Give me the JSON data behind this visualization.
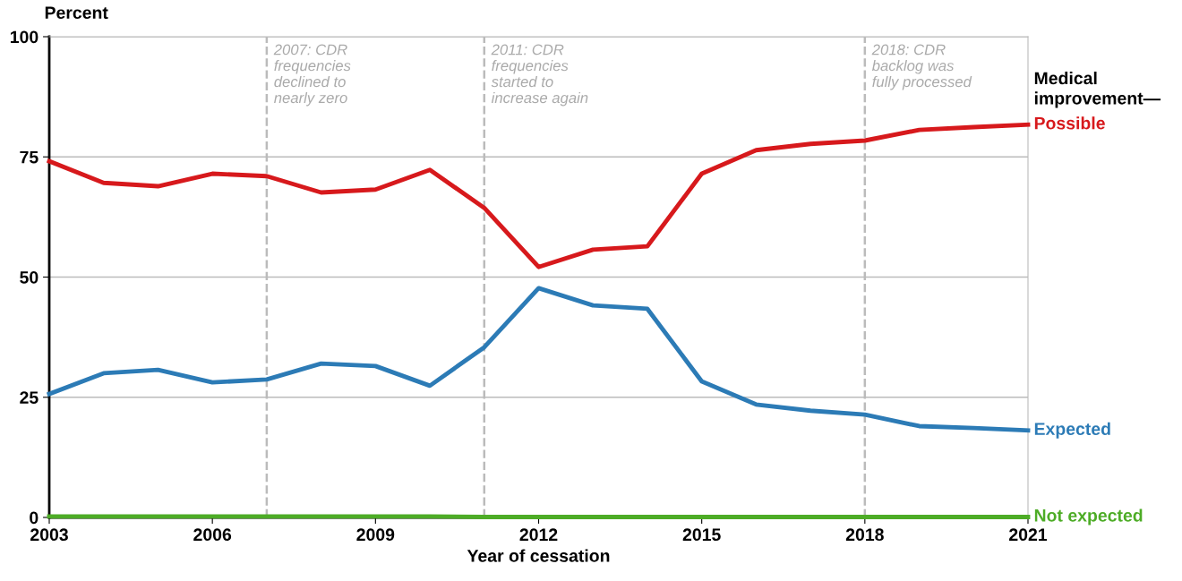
{
  "chart_data": {
    "type": "line",
    "ylabel": "Percent",
    "xlabel": "Year of cessation",
    "legend_title": "Medical\nimprovement—",
    "x": [
      2003,
      2004,
      2005,
      2006,
      2007,
      2008,
      2009,
      2010,
      2011,
      2012,
      2013,
      2014,
      2015,
      2016,
      2017,
      2018,
      2019,
      2020,
      2021
    ],
    "series": [
      {
        "name": "Possible",
        "color": "#d7191c",
        "values": [
          74.1,
          69.6,
          68.9,
          71.5,
          71.0,
          67.6,
          68.2,
          72.3,
          64.4,
          52.1,
          55.7,
          56.4,
          71.5,
          76.4,
          77.7,
          78.4,
          80.6,
          81.2,
          81.7
        ]
      },
      {
        "name": "Expected",
        "color": "#2c7bb6",
        "values": [
          25.7,
          30.0,
          30.7,
          28.1,
          28.7,
          32.0,
          31.5,
          27.4,
          35.4,
          47.7,
          44.1,
          43.4,
          28.3,
          23.5,
          22.2,
          21.4,
          19.0,
          18.6,
          18.1
        ]
      },
      {
        "name": "Not expected",
        "color": "#4dac26",
        "values": [
          0.2,
          0.2,
          0.2,
          0.2,
          0.2,
          0.2,
          0.2,
          0.2,
          0.1,
          0.1,
          0.1,
          0.1,
          0.1,
          0.1,
          0.1,
          0.1,
          0.1,
          0.1,
          0.1
        ]
      }
    ],
    "xlim": [
      2003,
      2021
    ],
    "xticks": [
      2003,
      2006,
      2009,
      2012,
      2015,
      2018,
      2021
    ],
    "ylim": [
      0,
      100
    ],
    "yticks": [
      0,
      25,
      50,
      75,
      100
    ],
    "grid": "y",
    "legend": false,
    "marker": "none",
    "line_style": "solid",
    "ref_lines": [
      {
        "axis": "x",
        "value": 2007,
        "label": "2007: CDR\nfrequencies\ndeclined to\nnearly zero",
        "color": "#bbbbbb",
        "line_style": "dashed"
      },
      {
        "axis": "x",
        "value": 2011,
        "label": "2011: CDR\nfrequencies\nstarted to\nincrease again",
        "color": "#bbbbbb",
        "line_style": "dashed"
      },
      {
        "axis": "x",
        "value": 2018,
        "label": "2018: CDR\nbacklog was\nfully processed",
        "color": "#bbbbbb",
        "line_style": "dashed"
      }
    ]
  }
}
